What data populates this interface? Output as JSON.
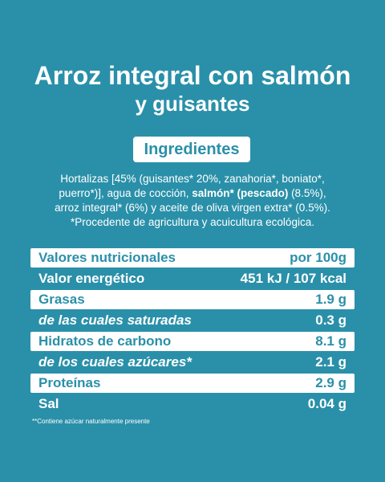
{
  "header": {
    "title": "Arroz integral con salmón",
    "subtitle": "y guisantes"
  },
  "ingredients": {
    "heading": "Ingredientes",
    "text_before": "Hortalizas [45% (guisantes* 20%, zanahoria*, boniato*, puerro*)], agua de cocción, ",
    "text_bold": "salmón* (pescado)",
    "text_after": " (8.5%), arroz integral* (6%) y aceite de oliva virgen extra* (0.5%).",
    "note": "*Procedente de agricultura y acuicultura ecológica."
  },
  "table": {
    "rows": [
      [
        "Valores nutricionales",
        "por 100g"
      ],
      [
        "Valor energético",
        "451 kJ / 107 kcal"
      ],
      [
        "Grasas",
        "1.9 g"
      ],
      [
        "de las cuales saturadas",
        "0.3 g"
      ],
      [
        "Hidratos de carbono",
        "8.1 g"
      ],
      [
        "de los cuales azúcares*",
        "2.1 g"
      ],
      [
        "Proteínas",
        "2.9 g"
      ],
      [
        "Sal",
        "0.04 g"
      ]
    ]
  },
  "footnote": "**Contiene azúcar naturalmente presente"
}
